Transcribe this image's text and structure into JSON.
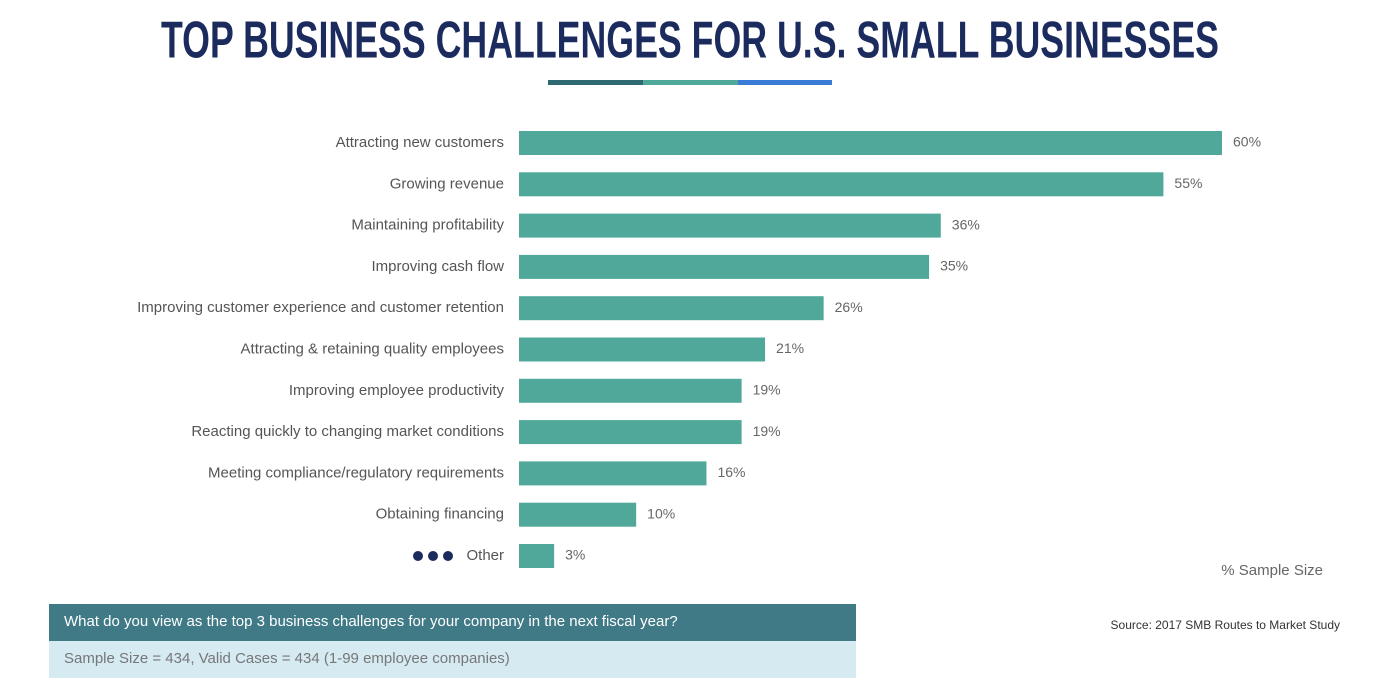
{
  "chart_data": {
    "type": "bar",
    "orientation": "horizontal",
    "title": "TOP BUSINESS CHALLENGES FOR U.S. SMALL BUSINESSES",
    "categories": [
      "Attracting new customers",
      "Growing revenue",
      "Maintaining profitability",
      "Improving cash flow",
      "Improving customer experience and customer retention",
      "Attracting & retaining quality employees",
      "Improving employee productivity",
      "Reacting quickly to changing market conditions",
      "Meeting compliance/regulatory requirements",
      "Obtaining financing",
      "Other"
    ],
    "values": [
      60,
      55,
      36,
      35,
      26,
      21,
      19,
      19,
      16,
      10,
      3
    ],
    "value_labels": [
      "60%",
      "55%",
      "36%",
      "35%",
      "26%",
      "21%",
      "19%",
      "19%",
      "16%",
      "10%",
      "3%"
    ],
    "color": "#4fa89a",
    "xlabel": "% Sample Size",
    "question": "What do you view as the top 3 business challenges for your company in the next fiscal year?",
    "sample_note": "Sample Size = 434, Valid Cases = 434 (1-99 employee companies)",
    "source": "Source: 2017 SMB Routes to Market Study"
  }
}
